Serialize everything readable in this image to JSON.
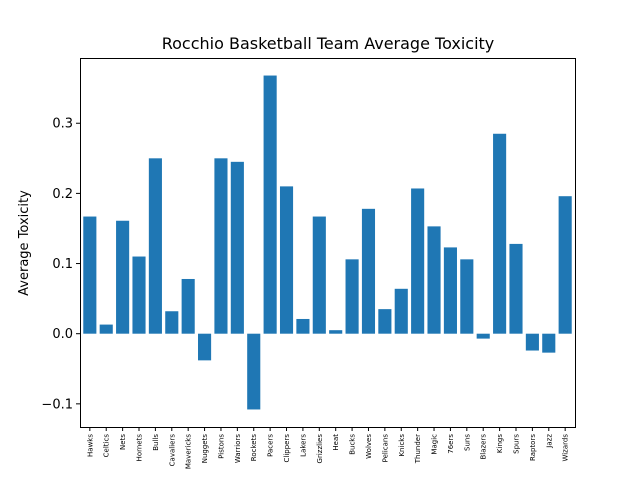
{
  "chart_data": {
    "type": "bar",
    "title": "Rocchio Basketball Team Average Toxicity",
    "xlabel": "",
    "ylabel": "Average Toxicity",
    "ylim": [
      -0.133,
      0.393
    ],
    "yticks": [
      -0.1,
      0.0,
      0.1,
      0.2,
      0.3
    ],
    "ytick_labels": [
      "−0.1",
      "0.0",
      "0.1",
      "0.2",
      "0.3"
    ],
    "grid": false,
    "bar_color": "#1f77b4",
    "categories": [
      "Hawks",
      "Celtics",
      "Nets",
      "Hornets",
      "Bulls",
      "Cavaliers",
      "Mavericks",
      "Nuggets",
      "Pistons",
      "Warriors",
      "Rockets",
      "Pacers",
      "Clippers",
      "Lakers",
      "Grizzlies",
      "Heat",
      "Bucks",
      "Wolves",
      "Pelicans",
      "Knicks",
      "Thunder",
      "Magic",
      "76ers",
      "Suns",
      "Blazers",
      "Kings",
      "Spurs",
      "Raptors",
      "Jazz",
      "Wizards"
    ],
    "values": [
      0.167,
      0.013,
      0.161,
      0.11,
      0.25,
      0.032,
      0.078,
      -0.038,
      0.25,
      0.245,
      -0.108,
      0.368,
      0.21,
      0.021,
      0.167,
      0.005,
      0.106,
      0.178,
      0.035,
      0.064,
      0.207,
      0.153,
      0.123,
      0.106,
      -0.007,
      0.285,
      0.128,
      -0.024,
      -0.027,
      0.196
    ]
  }
}
